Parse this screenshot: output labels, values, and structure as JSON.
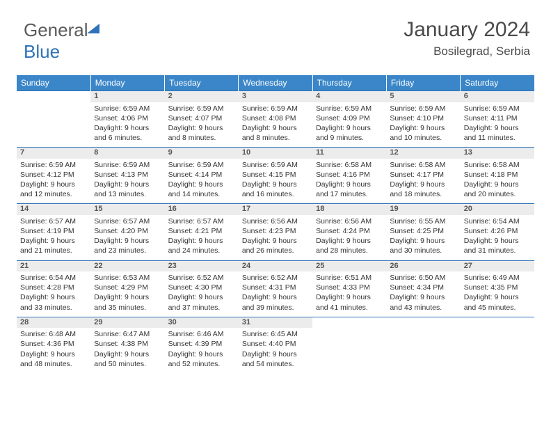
{
  "logo": {
    "text_gray": "General",
    "text_blue": "Blue"
  },
  "header": {
    "month_title": "January 2024",
    "location": "Bosilegrad, Serbia"
  },
  "colors": {
    "header_bg": "#3a86c8",
    "daynum_bg": "#ececec",
    "row_border": "#2f72b8",
    "text": "#333333",
    "title_text": "#4a4a4a"
  },
  "weekdays": [
    "Sunday",
    "Monday",
    "Tuesday",
    "Wednesday",
    "Thursday",
    "Friday",
    "Saturday"
  ],
  "weeks": [
    [
      null,
      {
        "n": "1",
        "sr": "6:59 AM",
        "ss": "4:06 PM",
        "dl": "9 hours and 6 minutes."
      },
      {
        "n": "2",
        "sr": "6:59 AM",
        "ss": "4:07 PM",
        "dl": "9 hours and 8 minutes."
      },
      {
        "n": "3",
        "sr": "6:59 AM",
        "ss": "4:08 PM",
        "dl": "9 hours and 8 minutes."
      },
      {
        "n": "4",
        "sr": "6:59 AM",
        "ss": "4:09 PM",
        "dl": "9 hours and 9 minutes."
      },
      {
        "n": "5",
        "sr": "6:59 AM",
        "ss": "4:10 PM",
        "dl": "9 hours and 10 minutes."
      },
      {
        "n": "6",
        "sr": "6:59 AM",
        "ss": "4:11 PM",
        "dl": "9 hours and 11 minutes."
      }
    ],
    [
      {
        "n": "7",
        "sr": "6:59 AM",
        "ss": "4:12 PM",
        "dl": "9 hours and 12 minutes."
      },
      {
        "n": "8",
        "sr": "6:59 AM",
        "ss": "4:13 PM",
        "dl": "9 hours and 13 minutes."
      },
      {
        "n": "9",
        "sr": "6:59 AM",
        "ss": "4:14 PM",
        "dl": "9 hours and 14 minutes."
      },
      {
        "n": "10",
        "sr": "6:59 AM",
        "ss": "4:15 PM",
        "dl": "9 hours and 16 minutes."
      },
      {
        "n": "11",
        "sr": "6:58 AM",
        "ss": "4:16 PM",
        "dl": "9 hours and 17 minutes."
      },
      {
        "n": "12",
        "sr": "6:58 AM",
        "ss": "4:17 PM",
        "dl": "9 hours and 18 minutes."
      },
      {
        "n": "13",
        "sr": "6:58 AM",
        "ss": "4:18 PM",
        "dl": "9 hours and 20 minutes."
      }
    ],
    [
      {
        "n": "14",
        "sr": "6:57 AM",
        "ss": "4:19 PM",
        "dl": "9 hours and 21 minutes."
      },
      {
        "n": "15",
        "sr": "6:57 AM",
        "ss": "4:20 PM",
        "dl": "9 hours and 23 minutes."
      },
      {
        "n": "16",
        "sr": "6:57 AM",
        "ss": "4:21 PM",
        "dl": "9 hours and 24 minutes."
      },
      {
        "n": "17",
        "sr": "6:56 AM",
        "ss": "4:23 PM",
        "dl": "9 hours and 26 minutes."
      },
      {
        "n": "18",
        "sr": "6:56 AM",
        "ss": "4:24 PM",
        "dl": "9 hours and 28 minutes."
      },
      {
        "n": "19",
        "sr": "6:55 AM",
        "ss": "4:25 PM",
        "dl": "9 hours and 30 minutes."
      },
      {
        "n": "20",
        "sr": "6:54 AM",
        "ss": "4:26 PM",
        "dl": "9 hours and 31 minutes."
      }
    ],
    [
      {
        "n": "21",
        "sr": "6:54 AM",
        "ss": "4:28 PM",
        "dl": "9 hours and 33 minutes."
      },
      {
        "n": "22",
        "sr": "6:53 AM",
        "ss": "4:29 PM",
        "dl": "9 hours and 35 minutes."
      },
      {
        "n": "23",
        "sr": "6:52 AM",
        "ss": "4:30 PM",
        "dl": "9 hours and 37 minutes."
      },
      {
        "n": "24",
        "sr": "6:52 AM",
        "ss": "4:31 PM",
        "dl": "9 hours and 39 minutes."
      },
      {
        "n": "25",
        "sr": "6:51 AM",
        "ss": "4:33 PM",
        "dl": "9 hours and 41 minutes."
      },
      {
        "n": "26",
        "sr": "6:50 AM",
        "ss": "4:34 PM",
        "dl": "9 hours and 43 minutes."
      },
      {
        "n": "27",
        "sr": "6:49 AM",
        "ss": "4:35 PM",
        "dl": "9 hours and 45 minutes."
      }
    ],
    [
      {
        "n": "28",
        "sr": "6:48 AM",
        "ss": "4:36 PM",
        "dl": "9 hours and 48 minutes."
      },
      {
        "n": "29",
        "sr": "6:47 AM",
        "ss": "4:38 PM",
        "dl": "9 hours and 50 minutes."
      },
      {
        "n": "30",
        "sr": "6:46 AM",
        "ss": "4:39 PM",
        "dl": "9 hours and 52 minutes."
      },
      {
        "n": "31",
        "sr": "6:45 AM",
        "ss": "4:40 PM",
        "dl": "9 hours and 54 minutes."
      },
      null,
      null,
      null
    ]
  ],
  "labels": {
    "sunrise": "Sunrise:",
    "sunset": "Sunset:",
    "daylight": "Daylight:"
  }
}
